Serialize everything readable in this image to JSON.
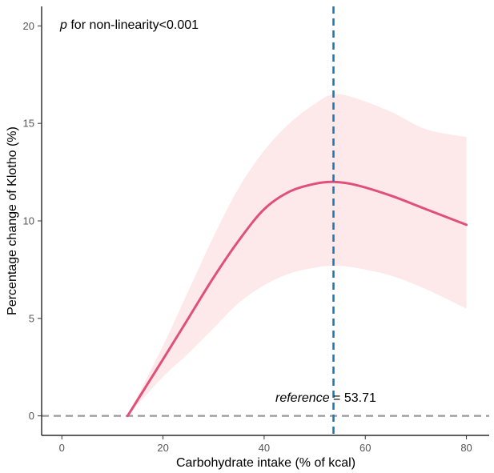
{
  "chart_data": {
    "type": "line",
    "title": "",
    "xlabel": "Carbohydrate intake (% of kcal)",
    "ylabel": "Percentage change of Klotho (%)",
    "xlim": [
      -4,
      84.5
    ],
    "ylim": [
      -1,
      21
    ],
    "xticks": [
      0,
      20,
      40,
      60,
      80
    ],
    "yticks": [
      0,
      5,
      10,
      15,
      20
    ],
    "xtick_labels": [
      "0",
      "20",
      "40",
      "60",
      "80"
    ],
    "ytick_labels": [
      "0",
      "5",
      "10",
      "15",
      "20"
    ],
    "grid": false,
    "series": [
      {
        "name": "Percentage change",
        "color": "#e0507a",
        "x": [
          13,
          20,
          25,
          30,
          35,
          40,
          45,
          50,
          53.71,
          58,
          65,
          72,
          80
        ],
        "y": [
          0,
          2.9,
          5.0,
          7.1,
          9.0,
          10.6,
          11.5,
          11.9,
          12.0,
          11.85,
          11.3,
          10.6,
          9.8
        ]
      }
    ],
    "confidence_band": {
      "color": "#fde8ea",
      "x": [
        13,
        20,
        25,
        30,
        35,
        40,
        45,
        50,
        53.71,
        58,
        65,
        72,
        80
      ],
      "lower": [
        0,
        2.0,
        3.2,
        4.5,
        5.8,
        6.7,
        7.3,
        7.6,
        7.7,
        7.6,
        7.2,
        6.5,
        5.5
      ],
      "upper": [
        0,
        3.6,
        6.4,
        9.2,
        11.7,
        13.6,
        15.0,
        16.0,
        16.5,
        16.3,
        15.6,
        14.7,
        14.3
      ]
    },
    "reference_line": {
      "x": 53.71,
      "color": "#1f77b4",
      "style": "dashed"
    },
    "baseline": {
      "y": 0,
      "color": "#999999",
      "style": "dashed"
    },
    "annotations": {
      "p_symbol": "p",
      "p_text": " for non-linearity<0.001",
      "reference_word": "reference",
      "reference_value": " = 53.71"
    }
  }
}
